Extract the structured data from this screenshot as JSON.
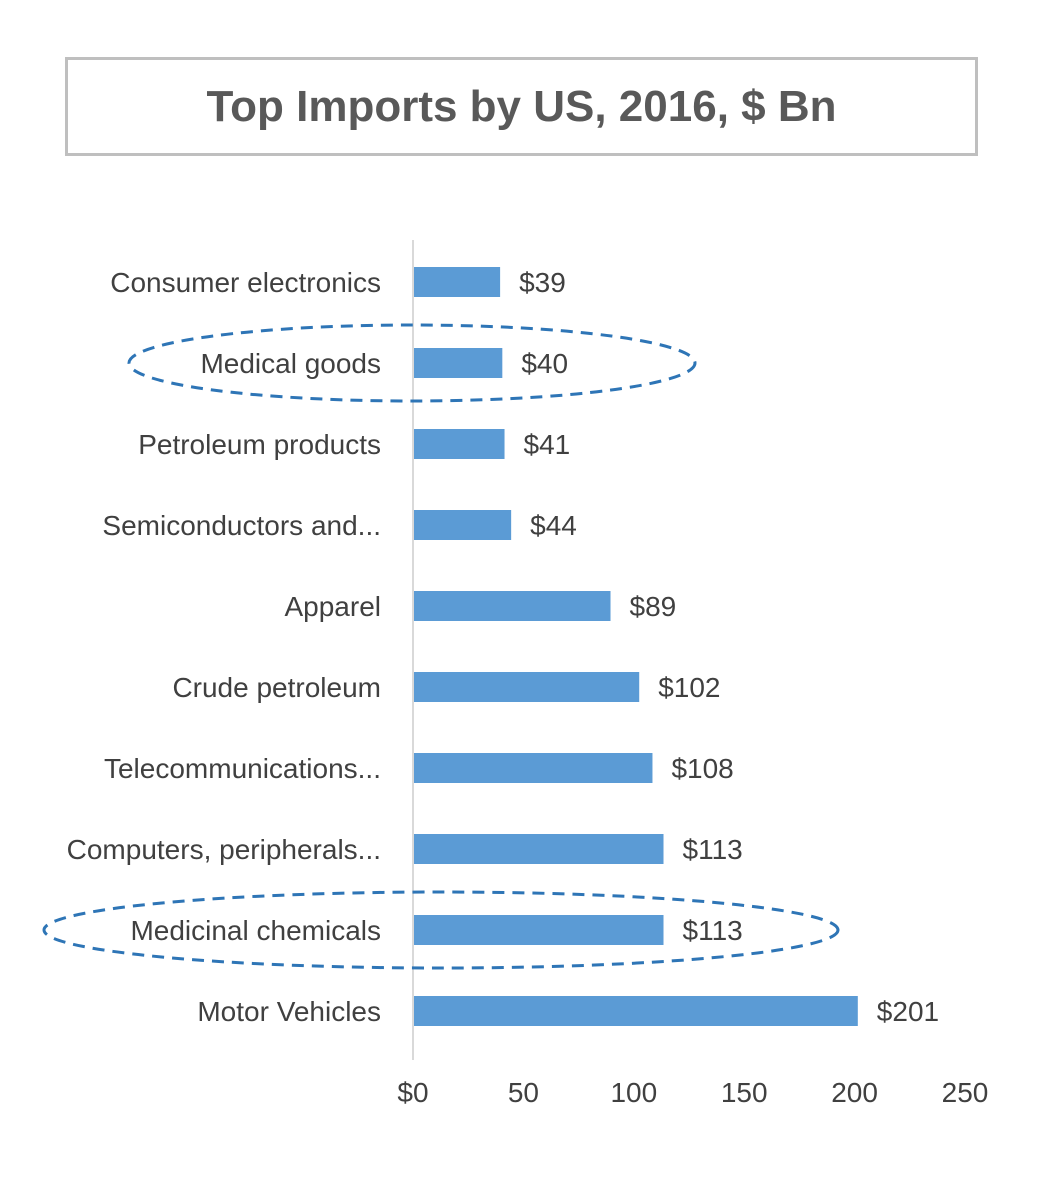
{
  "chart_data": {
    "type": "bar",
    "orientation": "horizontal",
    "title": "Top Imports by US, 2016, $ Bn",
    "categories": [
      "Consumer electronics",
      "Medical goods",
      "Petroleum products",
      "Semiconductors and...",
      "Apparel",
      "Crude petroleum",
      "Telecommunications...",
      "Computers, peripherals...",
      "Medicinal chemicals",
      "Motor Vehicles"
    ],
    "values": [
      39,
      40,
      41,
      44,
      89,
      102,
      108,
      113,
      113,
      201
    ],
    "data_labels": [
      "$39",
      "$40",
      "$41",
      "$44",
      "$89",
      "$102",
      "$108",
      "$113",
      "$113",
      "$201"
    ],
    "x_ticks": [
      "$0",
      "50",
      "100",
      "150",
      "200",
      "250"
    ],
    "x_tick_values": [
      0,
      50,
      100,
      150,
      200,
      250
    ],
    "xlim": [
      0,
      250
    ],
    "highlighted": [
      "Medical goods",
      "Medicinal chemicals"
    ],
    "grid": false,
    "bar_color": "#5b9bd5",
    "highlight_color": "#2e75b6"
  }
}
